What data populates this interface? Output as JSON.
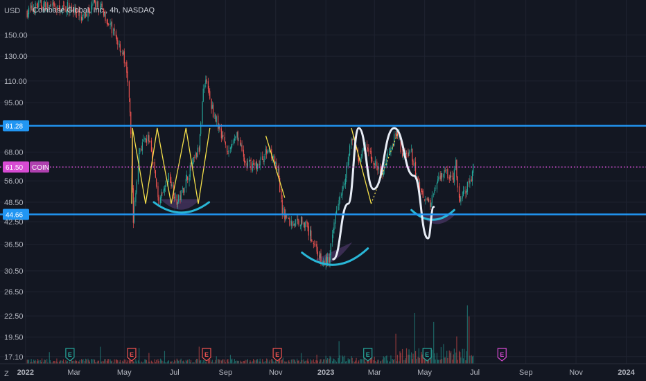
{
  "header": {
    "currency": "USD",
    "title": "Coinbase Global, Inc., 4h, NASDAQ",
    "footer_icon": "Z"
  },
  "colors": {
    "background": "#131722",
    "grid": "#1f2330",
    "up": "#26a69a",
    "down": "#ef5350",
    "level_line": "#2196f3",
    "current_line": "#d74bd3",
    "pattern_curve": "#29b6d6",
    "zigzag_yellow": "#f5e04a",
    "white_path": "#e8edf6",
    "shade": "#5b3f7a"
  },
  "chart_data": {
    "type": "candlestick",
    "symbol": "COIN",
    "title": "Coinbase Global, Inc., 4h, NASDAQ",
    "y_scale": "log",
    "ylim": [
      16.3,
      190
    ],
    "xlim": [
      "2021-12-01",
      "2024-01-25"
    ],
    "yticks": [
      "150.00",
      "130.00",
      "110.00",
      "95.00",
      "81.28",
      "68.00",
      "61.50",
      "56.00",
      "48.50",
      "44.66",
      "42.50",
      "36.50",
      "30.50",
      "26.50",
      "22.50",
      "19.50",
      "17.10"
    ],
    "ytick_values": [
      150,
      130,
      110,
      95,
      81.28,
      68,
      61.5,
      56,
      48.5,
      44.66,
      42.5,
      36.5,
      30.5,
      26.5,
      22.5,
      19.5,
      17.1
    ],
    "xticks": [
      "2022",
      "Mar",
      "May",
      "Jul",
      "Sep",
      "Nov",
      "2023",
      "Mar",
      "May",
      "Jul",
      "Sep",
      "Nov",
      "2024"
    ],
    "xtick_dates": [
      "2022-01-01",
      "2022-03-01",
      "2022-05-01",
      "2022-07-01",
      "2022-09-01",
      "2022-11-01",
      "2023-01-01",
      "2023-03-01",
      "2023-05-01",
      "2023-07-01",
      "2023-09-01",
      "2023-11-01",
      "2024-01-01"
    ],
    "horizontal_levels": [
      {
        "value": 81.28,
        "label": "81.28"
      },
      {
        "value": 44.66,
        "label": "44.66"
      }
    ],
    "current_price": {
      "value": 61.5,
      "label": "61.50",
      "symbol": "COIN"
    },
    "price_path": [
      [
        "2022-01-03",
        175
      ],
      [
        "2022-01-20",
        185
      ],
      [
        "2022-02-10",
        178
      ],
      [
        "2022-02-25",
        182
      ],
      [
        "2022-03-10",
        165
      ],
      [
        "2022-03-25",
        185
      ],
      [
        "2022-04-05",
        178
      ],
      [
        "2022-04-20",
        150
      ],
      [
        "2022-05-01",
        130
      ],
      [
        "2022-05-06",
        110
      ],
      [
        "2022-05-10",
        75
      ],
      [
        "2022-05-12",
        42
      ],
      [
        "2022-05-20",
        70
      ],
      [
        "2022-06-01",
        75
      ],
      [
        "2022-06-13",
        48
      ],
      [
        "2022-06-25",
        58
      ],
      [
        "2022-07-05",
        48
      ],
      [
        "2022-07-20",
        60
      ],
      [
        "2022-08-01",
        70
      ],
      [
        "2022-08-04",
        95
      ],
      [
        "2022-08-08",
        115
      ],
      [
        "2022-08-15",
        93
      ],
      [
        "2022-08-25",
        80
      ],
      [
        "2022-09-05",
        68
      ],
      [
        "2022-09-15",
        78
      ],
      [
        "2022-09-25",
        63
      ],
      [
        "2022-10-10",
        62
      ],
      [
        "2022-10-25",
        70
      ],
      [
        "2022-11-05",
        58
      ],
      [
        "2022-11-09",
        46
      ],
      [
        "2022-11-20",
        42
      ],
      [
        "2022-12-05",
        43
      ],
      [
        "2022-12-20",
        36
      ],
      [
        "2022-12-28",
        32
      ],
      [
        "2023-01-06",
        33
      ],
      [
        "2023-01-15",
        48
      ],
      [
        "2023-01-25",
        58
      ],
      [
        "2023-02-02",
        75
      ],
      [
        "2023-02-10",
        65
      ],
      [
        "2023-02-20",
        70
      ],
      [
        "2023-03-02",
        63
      ],
      [
        "2023-03-10",
        58
      ],
      [
        "2023-03-20",
        70
      ],
      [
        "2023-03-30",
        78
      ],
      [
        "2023-04-05",
        66
      ],
      [
        "2023-04-15",
        68
      ],
      [
        "2023-04-20",
        60
      ],
      [
        "2023-04-28",
        52
      ],
      [
        "2023-05-08",
        48
      ],
      [
        "2023-05-15",
        55
      ],
      [
        "2023-05-25",
        60
      ],
      [
        "2023-06-05",
        56
      ],
      [
        "2023-06-08",
        63
      ],
      [
        "2023-06-12",
        49
      ],
      [
        "2023-06-20",
        52
      ],
      [
        "2023-06-28",
        58
      ],
      [
        "2023-06-30",
        61.5
      ]
    ],
    "earnings_markers": [
      {
        "date": "2022-02-24",
        "label": "E",
        "kind": "beat"
      },
      {
        "date": "2022-05-10",
        "label": "E",
        "kind": "miss"
      },
      {
        "date": "2022-08-09",
        "label": "E",
        "kind": "miss"
      },
      {
        "date": "2022-11-03",
        "label": "E",
        "kind": "miss"
      },
      {
        "date": "2023-02-21",
        "label": "E",
        "kind": "beat"
      },
      {
        "date": "2023-05-04",
        "label": "E",
        "kind": "beat"
      },
      {
        "date": "2023-08-03",
        "label": "E",
        "kind": "upcoming"
      }
    ]
  }
}
